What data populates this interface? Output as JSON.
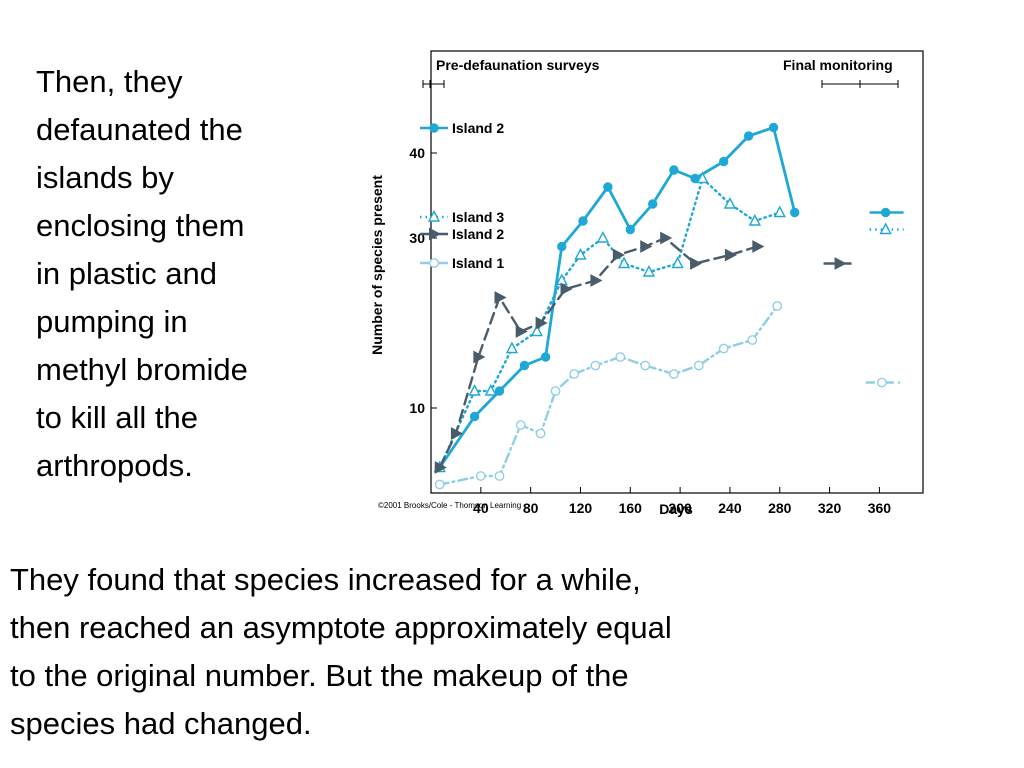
{
  "slide": {
    "side_lines": [
      "Then, they",
      "defaunated the",
      "islands by",
      "enclosing them",
      "in plastic and",
      "pumping in",
      "methyl bromide",
      "to kill all the",
      "arthropods."
    ],
    "bottom_lines": [
      "They found that species increased for a while,",
      "then reached an asymptote approximately equal",
      "to the original number.  But the makeup of the",
      "species had changed."
    ]
  },
  "chart_data": {
    "type": "line",
    "xlabel": "Days",
    "ylabel": "Number of species present",
    "copyright": "©2001 Brooks/Cole - Thomson Learning",
    "x_ticks": [
      40,
      80,
      120,
      160,
      200,
      240,
      280,
      320,
      360
    ],
    "x_tick_labels": [
      "40",
      "80",
      "120",
      "160",
      "200",
      "240",
      "280",
      "320",
      "360"
    ],
    "y_ticks": [
      10,
      30,
      40
    ],
    "y_tick_labels": [
      "10",
      "30",
      "40"
    ],
    "xlim": [
      0,
      395
    ],
    "ylim": [
      0,
      52
    ],
    "grid": false,
    "annotations": {
      "pre_label": "Pre-defaunation surveys",
      "final_label": "Final monitoring"
    },
    "series": [
      {
        "name": "Island 2",
        "color": "#1fa8d6",
        "dash": "solid",
        "marker": "filled-circle",
        "x": [
          7,
          35,
          55,
          75,
          92,
          105,
          122,
          142,
          160,
          178,
          195,
          212,
          235,
          255,
          275,
          292
        ],
        "y": [
          3,
          9,
          12,
          15,
          16,
          29,
          32,
          36,
          31,
          34,
          38,
          37,
          39,
          42,
          43,
          33
        ],
        "final": {
          "x": 365,
          "y": 33
        }
      },
      {
        "name": "Island 3",
        "color": "#1fa8d6",
        "dash": "dotted",
        "marker": "open-triangle",
        "x": [
          7,
          35,
          48,
          65,
          85,
          105,
          120,
          138,
          155,
          175,
          198,
          218,
          240,
          260,
          280
        ],
        "y": [
          3,
          12,
          12,
          17,
          19,
          25,
          28,
          30,
          27,
          26,
          27,
          37,
          34,
          32,
          33
        ],
        "final": {
          "x": 365,
          "y": 31
        }
      },
      {
        "name": "Island 2",
        "color": "#4a5c6a",
        "dash": "dashed",
        "marker": "filled-triangle-right",
        "x": [
          7,
          20,
          38,
          55,
          72,
          88,
          108,
          132,
          150,
          172,
          188,
          212,
          240,
          262
        ],
        "y": [
          3,
          7,
          16,
          23,
          19,
          20,
          24,
          25,
          28,
          29,
          30,
          27,
          28,
          29
        ],
        "final": {
          "x": 328,
          "y": 27
        }
      },
      {
        "name": "Island 1",
        "color": "#8fcfe6",
        "dash": "dashdot",
        "marker": "open-circle",
        "x": [
          7,
          40,
          55,
          72,
          88,
          100,
          115,
          132,
          152,
          172,
          195,
          215,
          235,
          258,
          278
        ],
        "y": [
          1,
          2,
          2,
          8,
          7,
          12,
          14,
          15,
          16,
          15,
          14,
          15,
          17,
          18,
          22
        ],
        "final": {
          "x": 362,
          "y": 13
        }
      }
    ]
  }
}
